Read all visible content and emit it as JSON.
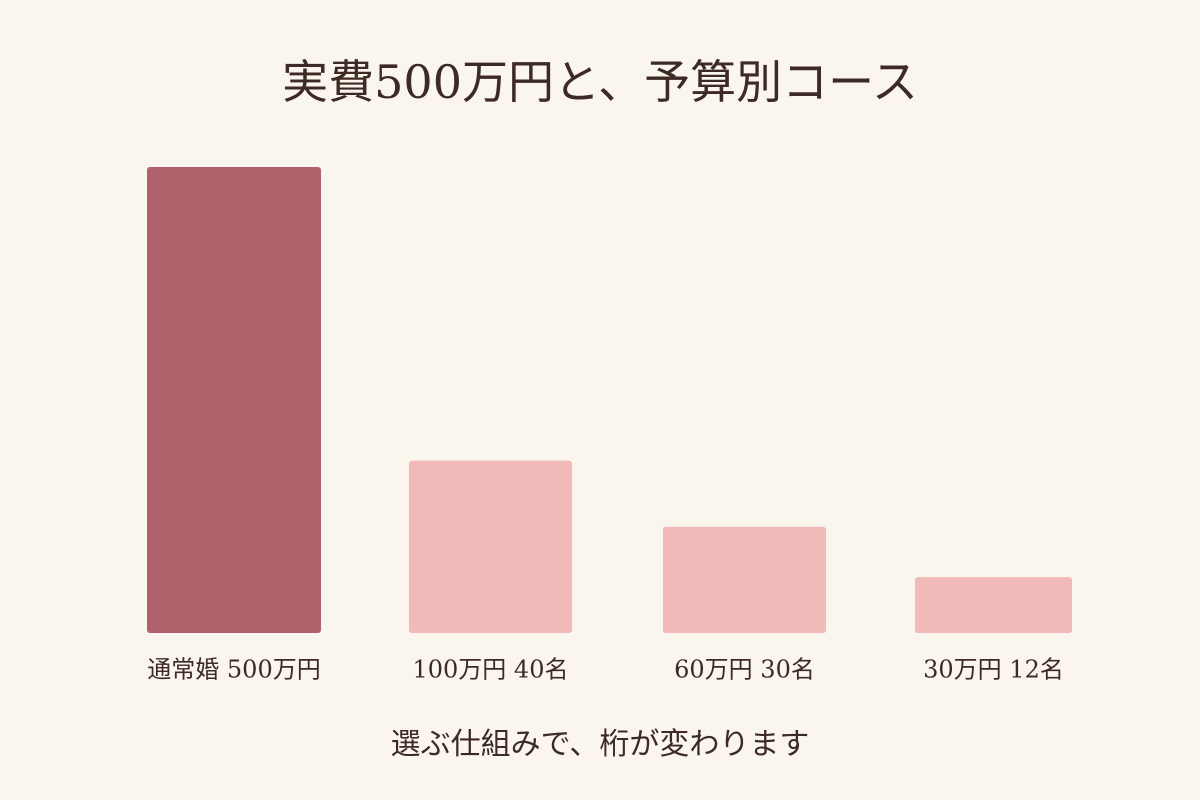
{
  "chart_data": {
    "type": "bar",
    "title": "実費500万円と、予算別コース",
    "categories": [
      "通常婚 500万円",
      "100万円 40名",
      "60万円 30名",
      "30万円 12名"
    ],
    "values": [
      500,
      185,
      114,
      60
    ],
    "colors": [
      "#b0616c",
      "#f1b9b8",
      "#f1b9b8",
      "#f1b9b8"
    ],
    "ylim": [
      0,
      500
    ],
    "footnote": "選ぶ仕組みで、桁が変わります"
  }
}
